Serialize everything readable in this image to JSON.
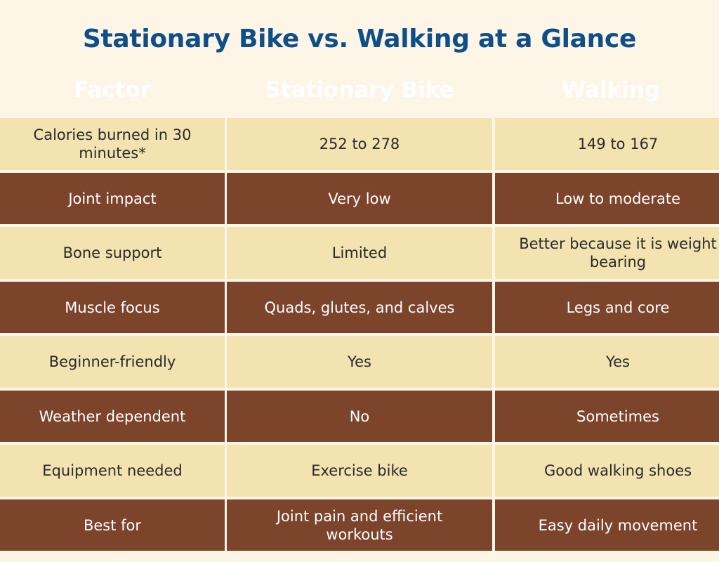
{
  "title": "Stationary Bike vs. Walking at a Glance",
  "colors": {
    "title": "#0e4f8a",
    "header_bg": "#7d442c",
    "dark_row_bg": "#7d442c",
    "light_row_bg": "#f2e3b0",
    "page_bg": "#fdf5e6"
  },
  "table": {
    "headers": [
      "Factor",
      "Stationary Bike",
      "Walking"
    ],
    "rows": [
      [
        "Calories burned in 30\nminutes*",
        "252 to 278",
        "149 to 167"
      ],
      [
        "Joint impact",
        "Very low",
        "Low to moderate"
      ],
      [
        "Bone support",
        "Limited",
        "Better because it is weight\nbearing"
      ],
      [
        "Muscle focus",
        "Quads, glutes, and calves",
        "Legs and core"
      ],
      [
        "Beginner-friendly",
        "Yes",
        "Yes"
      ],
      [
        "Weather dependent",
        "No",
        "Sometimes"
      ],
      [
        "Equipment needed",
        "Exercise bike",
        "Good walking shoes"
      ],
      [
        "Best for",
        "Joint pain and efficient\nworkouts",
        "Easy daily movement"
      ]
    ]
  }
}
